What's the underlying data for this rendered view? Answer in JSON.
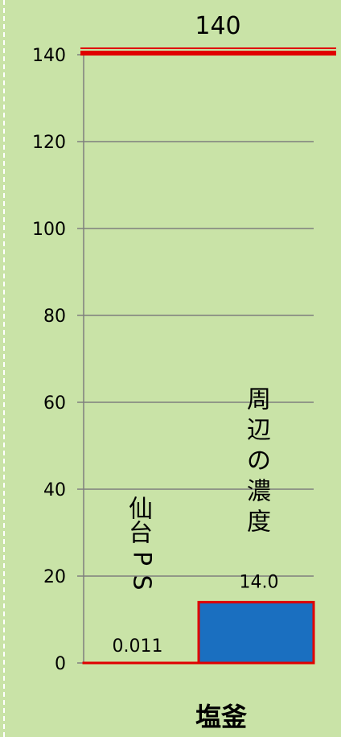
{
  "chart_data": {
    "type": "bar",
    "ylim": [
      0,
      140
    ],
    "yticks": [
      0,
      20,
      40,
      60,
      80,
      100,
      120,
      140
    ],
    "grid": true,
    "categories": [
      "仙台PS",
      "周辺の濃度"
    ],
    "values": [
      0.011,
      14.0
    ],
    "data_labels": [
      "0.011",
      "14.0"
    ],
    "bar_colors": [
      "#1f5fb0",
      "#1a6fc0"
    ],
    "outline_color": "#e00000",
    "reference_line": {
      "value": 140,
      "label": "140",
      "color": "#e00000"
    },
    "xlabel": "塩釜"
  }
}
